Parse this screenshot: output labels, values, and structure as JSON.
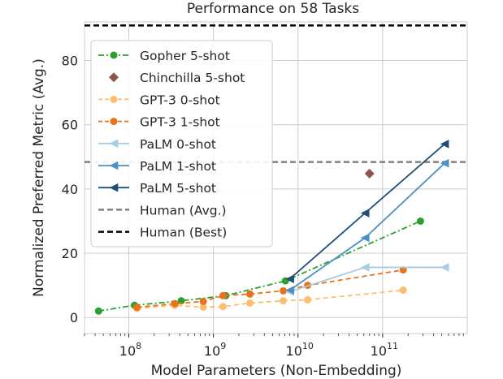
{
  "chart_data": {
    "type": "line",
    "title": "Performance on 58 Tasks",
    "xlabel": "Model Parameters (Non-Embedding)",
    "ylabel": "Normalized Preferred Metric (Avg.)",
    "xscale": "log",
    "xlim": [
      30000000.0,
      1000000000000.0
    ],
    "ylim": [
      -5,
      92
    ],
    "x_ticks": [
      {
        "value": 100000000.0,
        "base": "10",
        "exp": "8"
      },
      {
        "value": 1000000000.0,
        "base": "10",
        "exp": "9"
      },
      {
        "value": 10000000000.0,
        "base": "10",
        "exp": "10"
      },
      {
        "value": 100000000000.0,
        "base": "10",
        "exp": "11"
      }
    ],
    "y_ticks": [
      0,
      20,
      40,
      60,
      80
    ],
    "grid": true,
    "legend_position": "top-left",
    "series": [
      {
        "name": "Gopher 5-shot",
        "color": "#2ca02c",
        "linestyle": "dashdot",
        "marker": "circle",
        "x": [
          44000000.0,
          117000000.0,
          417000000.0,
          1400000000.0,
          7100000000.0,
          280000000000.0
        ],
        "y": [
          2.0,
          3.8,
          5.2,
          6.8,
          11.4,
          30.0
        ]
      },
      {
        "name": "Chinchilla 5-shot",
        "color": "#8c564b",
        "linestyle": "none",
        "marker": "diamond",
        "x": [
          70000000000.0
        ],
        "y": [
          44.8
        ]
      },
      {
        "name": "GPT-3 0-shot",
        "color": "#fdbf6f",
        "linestyle": "dashed",
        "marker": "circle",
        "x": [
          125000000.0,
          350000000.0,
          760000000.0,
          1300000000.0,
          2700000000.0,
          6700000000.0,
          13000000000.0,
          175000000000.0
        ],
        "y": [
          2.8,
          3.8,
          3.2,
          3.4,
          4.5,
          5.2,
          5.5,
          8.5
        ]
      },
      {
        "name": "GPT-3 1-shot",
        "color": "#e8731a",
        "linestyle": "dashed",
        "marker": "circle",
        "x": [
          125000000.0,
          350000000.0,
          760000000.0,
          1300000000.0,
          2700000000.0,
          6700000000.0,
          13000000000.0,
          175000000000.0
        ],
        "y": [
          3.2,
          4.3,
          5.0,
          6.8,
          7.3,
          8.3,
          10.0,
          14.8
        ]
      },
      {
        "name": "PaLM 0-shot",
        "color": "#a6cee3",
        "linestyle": "solid",
        "marker": "triangle-left",
        "x": [
          8000000000.0,
          62000000000.0,
          540000000000.0
        ],
        "y": [
          8.0,
          15.6,
          15.6
        ]
      },
      {
        "name": "PaLM 1-shot",
        "color": "#4a90c8",
        "linestyle": "solid",
        "marker": "triangle-left",
        "x": [
          8000000000.0,
          62000000000.0,
          540000000000.0
        ],
        "y": [
          8.5,
          24.8,
          48.0
        ]
      },
      {
        "name": "PaLM 5-shot",
        "color": "#1f4e79",
        "linestyle": "solid",
        "marker": "triangle-left",
        "x": [
          8000000000.0,
          62000000000.0,
          540000000000.0
        ],
        "y": [
          12.0,
          32.5,
          54.0
        ]
      }
    ],
    "reference_lines": [
      {
        "name": "Human (Avg.)",
        "color": "#808080",
        "linestyle": "dashed",
        "y": 48.4
      },
      {
        "name": "Human (Best)",
        "color": "#000000",
        "linestyle": "dashed",
        "y": 90.9
      }
    ]
  }
}
